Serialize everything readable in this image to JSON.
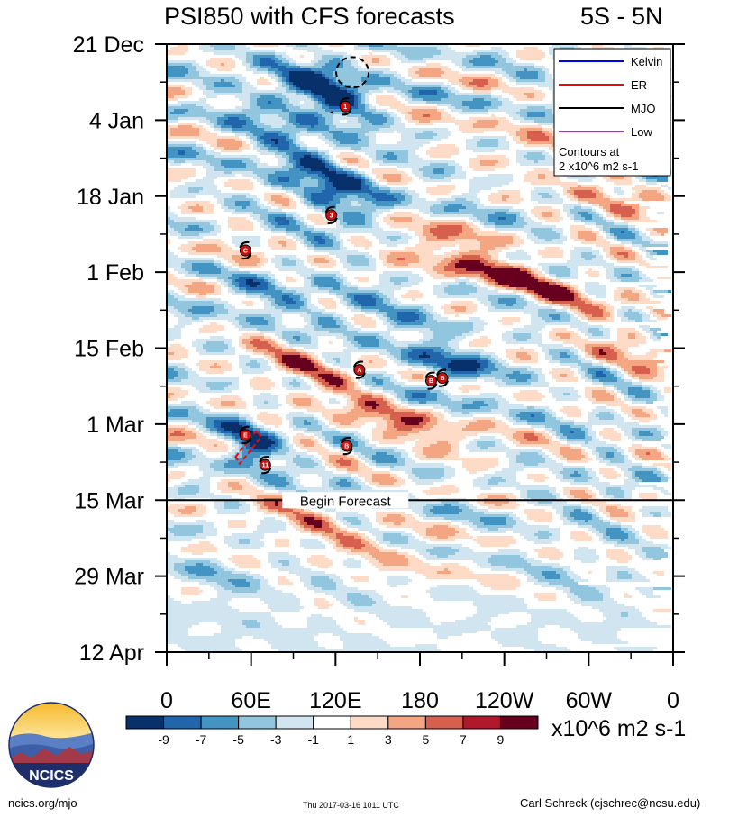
{
  "header": {
    "title": "PSI850 with CFS forecasts",
    "region": "5S - 5N"
  },
  "chart_data": {
    "type": "heatmap",
    "title": "PSI850 with CFS forecasts",
    "subtitle": "5S - 5N",
    "y_dates": [
      "21 Dec",
      "4 Jan",
      "18 Jan",
      "1 Feb",
      "15 Feb",
      "1 Mar",
      "15 Mar",
      "29 Mar",
      "12 Apr"
    ],
    "y_day_offsets": [
      0,
      14,
      28,
      42,
      56,
      70,
      84,
      98,
      112
    ],
    "x_labels": [
      "0",
      "60E",
      "120E",
      "180",
      "120W",
      "60W",
      "0"
    ],
    "x_longitudes": [
      0,
      60,
      120,
      180,
      240,
      300,
      360
    ],
    "forecast_start_day": 84,
    "forecast_label": "Begin Forecast",
    "colorbar": {
      "levels": [
        -10,
        -8,
        -6,
        -4,
        -2,
        0,
        2,
        4,
        6,
        8,
        10
      ],
      "tick_labels": [
        "-9",
        "-7",
        "-5",
        "-3",
        "-1",
        "1",
        "3",
        "5",
        "7",
        "9"
      ],
      "colors": [
        "#08306b",
        "#2166ac",
        "#4393c3",
        "#92c5de",
        "#d1e5f0",
        "#ffffff",
        "#fddbc7",
        "#f4a582",
        "#d6604d",
        "#b2182b",
        "#67001f"
      ],
      "units": "x10^6 m2 s-1"
    },
    "legend": {
      "position": "top-right",
      "entries": [
        {
          "name": "Kelvin",
          "color": "#0000ff"
        },
        {
          "name": "ER",
          "color": "#ff0000"
        },
        {
          "name": "MJO",
          "color": "#000000"
        },
        {
          "name": "Low",
          "color": "#9933cc"
        }
      ],
      "note1": "Contours at",
      "note2": "2 x10^6 m2 s-1"
    },
    "storms": [
      {
        "lon": 127,
        "day": 11.5,
        "label": "1"
      },
      {
        "lon": 117,
        "day": 31.5,
        "label": "3"
      },
      {
        "lon": 56,
        "day": 38,
        "label": "C"
      },
      {
        "lon": 137,
        "day": 60,
        "label": "A"
      },
      {
        "lon": 188,
        "day": 62,
        "label": "B"
      },
      {
        "lon": 196,
        "day": 61.5,
        "label": "B"
      },
      {
        "lon": 56,
        "day": 72,
        "label": "E"
      },
      {
        "lon": 128,
        "day": 74,
        "label": "B"
      },
      {
        "lon": 70,
        "day": 77.5,
        "label": "11"
      }
    ]
  },
  "footer": {
    "website": "ncics.org/mjo",
    "timestamp": "Thu 2017-03-16 1011 UTC",
    "author": "Carl Schreck (cjschrec@ncsu.edu)",
    "logo_text": "NCICS"
  }
}
